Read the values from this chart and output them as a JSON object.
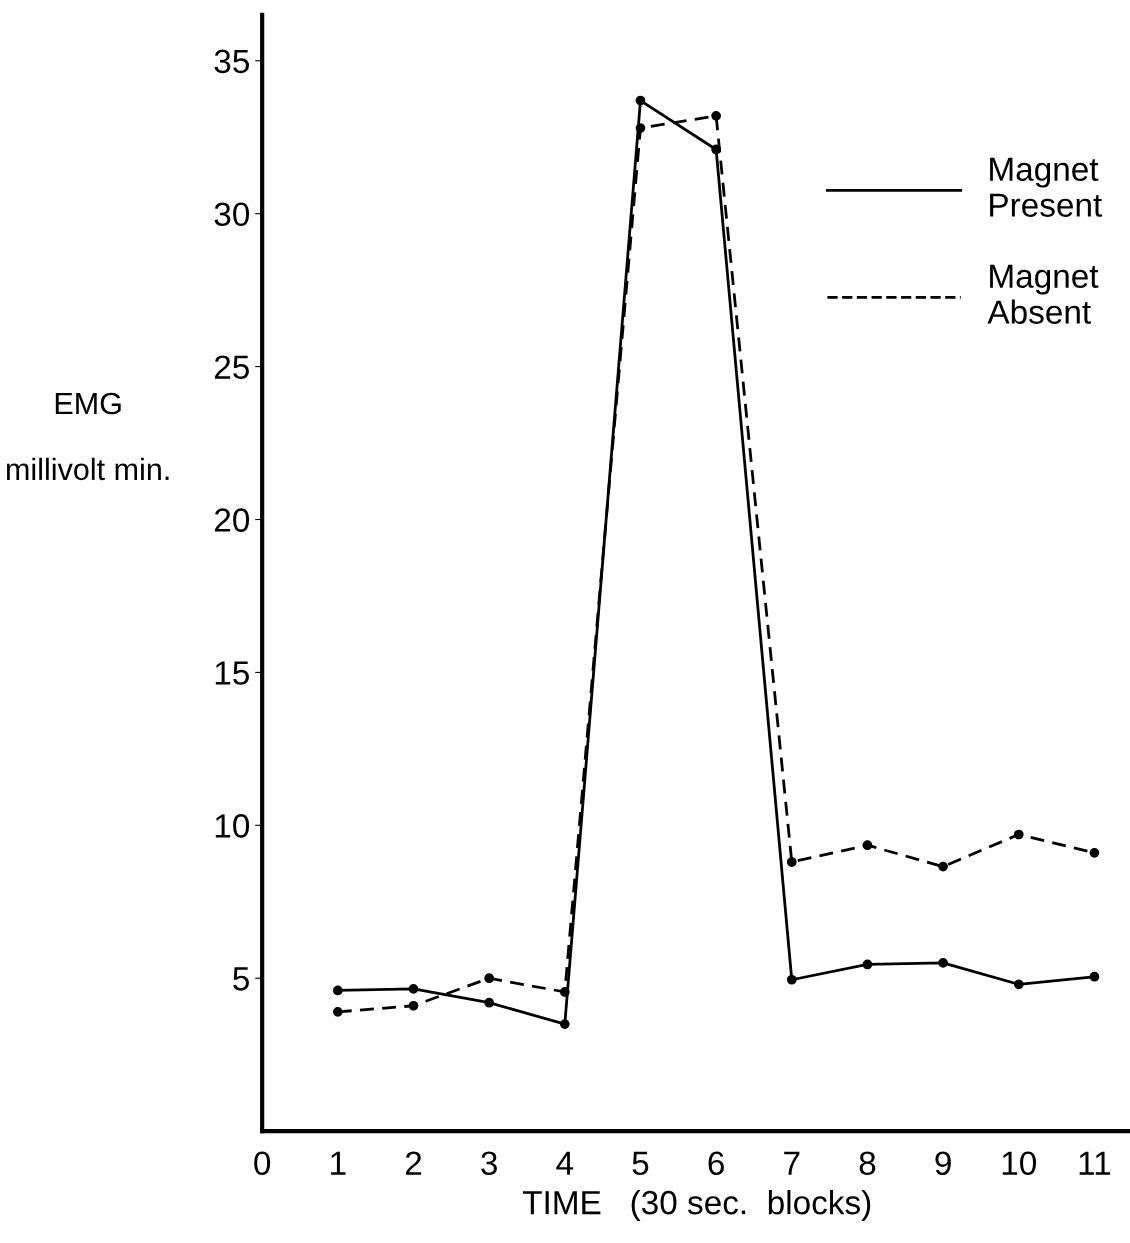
{
  "chart_data": {
    "type": "line",
    "xlabel": "TIME   (30 sec.  blocks)",
    "ylabel": "EMG\n\nmillivolt min.",
    "x": [
      1,
      2,
      3,
      4,
      5,
      6,
      7,
      8,
      9,
      10,
      11
    ],
    "series": [
      {
        "name": "Magnet\nPresent",
        "color": "#000000",
        "line_style": "solid",
        "values": [
          4.6,
          4.65,
          4.2,
          3.5,
          33.7,
          32.1,
          4.95,
          5.45,
          5.5,
          4.8,
          5.05
        ]
      },
      {
        "name": "Magnet\nAbsent",
        "color": "#000000",
        "line_style": "dashed",
        "values": [
          3.9,
          4.1,
          5.0,
          4.55,
          32.8,
          33.2,
          8.8,
          9.35,
          8.65,
          9.7,
          9.1
        ]
      }
    ],
    "xlim": [
      0,
      11.5
    ],
    "ylim": [
      0,
      36.5
    ],
    "xticks": [
      0,
      1,
      2,
      3,
      4,
      5,
      6,
      7,
      8,
      9,
      10,
      11
    ],
    "yticks": [
      5,
      10,
      15,
      20,
      25,
      30,
      35
    ],
    "marker": "circle",
    "grid": false,
    "legend": "top right"
  }
}
